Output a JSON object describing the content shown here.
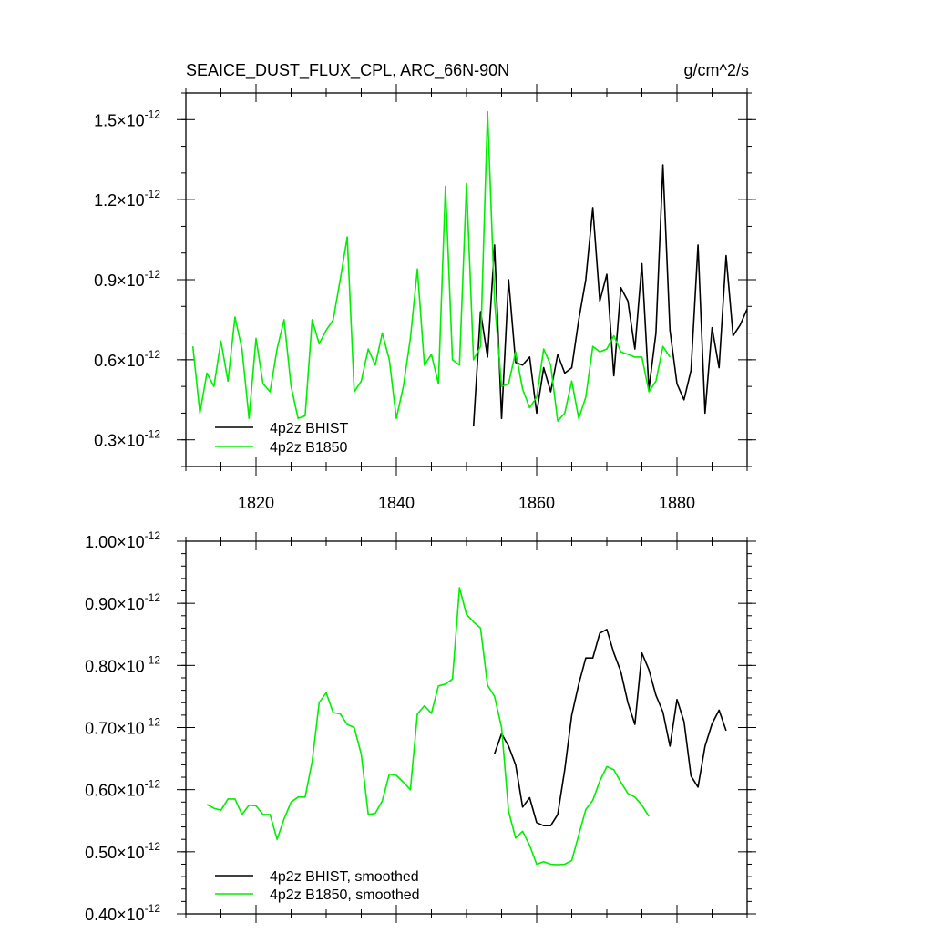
{
  "chart_data": [
    {
      "type": "line",
      "title": "SEAICE_DUST_FLUX_CPL, ARC_66N-90N",
      "units": "g/cm^2/s",
      "xlim": [
        1810,
        1890
      ],
      "ylim": [
        2e-13,
        1.6e-12
      ],
      "x_ticks": [
        1820,
        1840,
        1860,
        1880
      ],
      "y_ticks": [
        {
          "value": 3e-13,
          "mantissa": "0.3",
          "mult": "×10",
          "exp": "-12"
        },
        {
          "value": 6e-13,
          "mantissa": "0.6",
          "mult": "×10",
          "exp": "-12"
        },
        {
          "value": 9e-13,
          "mantissa": "0.9",
          "mult": "×10",
          "exp": "-12"
        },
        {
          "value": 1.2e-12,
          "mantissa": "1.2",
          "mult": "×10",
          "exp": "-12"
        },
        {
          "value": 1.5e-12,
          "mantissa": "1.5",
          "mult": "×10",
          "exp": "-12"
        }
      ],
      "legend_position": "bottom-left",
      "series": [
        {
          "name": "4p2z BHIST",
          "color": "#000000",
          "x_start": 1851,
          "values": [
            3.5e-13,
            7.8e-13,
            6.1e-13,
            1.03e-12,
            3.8e-13,
            9e-13,
            5.9e-13,
            5.8e-13,
            6.1e-13,
            4e-13,
            5.7e-13,
            4.8e-13,
            6.2e-13,
            5.5e-13,
            5.7e-13,
            7.5e-13,
            9e-13,
            1.17e-12,
            8.2e-13,
            9.2e-13,
            5.4e-13,
            8.7e-13,
            8.2e-13,
            6.4e-13,
            9.6e-13,
            4.9e-13,
            7e-13,
            1.33e-12,
            7.1e-13,
            5.1e-13,
            4.5e-13,
            5.6e-13,
            1.03e-12,
            4e-13,
            7.2e-13,
            5.7e-13,
            9.9e-13,
            6.9e-13,
            7.3e-13,
            7.9e-13
          ]
        },
        {
          "name": "4p2z B1850",
          "color": "#00ee00",
          "x_start": 1811,
          "values": [
            6.5e-13,
            4e-13,
            5.5e-13,
            5e-13,
            6.7e-13,
            5.2e-13,
            7.6e-13,
            6.4e-13,
            3.8e-13,
            6.8e-13,
            5.1e-13,
            4.8e-13,
            6.4e-13,
            7.5e-13,
            5e-13,
            3.8e-13,
            3.9e-13,
            7.5e-13,
            6.6e-13,
            7.1e-13,
            7.5e-13,
            9e-13,
            1.06e-12,
            4.8e-13,
            5.2e-13,
            6.4e-13,
            5.8e-13,
            7e-13,
            6e-13,
            3.8e-13,
            5e-13,
            6.8e-13,
            9.4e-13,
            5.8e-13,
            6.2e-13,
            5.1e-13,
            1.25e-12,
            6e-13,
            5.8e-13,
            1.26e-12,
            6e-13,
            6.5e-13,
            1.53e-12,
            8.2e-13,
            5e-13,
            5.1e-13,
            6.3e-13,
            4.9e-13,
            4.2e-13,
            4.6e-13,
            6.4e-13,
            5.8e-13,
            3.7e-13,
            4e-13,
            5.2e-13,
            3.8e-13,
            4.6e-13,
            6.5e-13,
            6.3e-13,
            6.4e-13,
            6.9e-13,
            6.3e-13,
            6.2e-13,
            6.1e-13,
            6.1e-13,
            4.8e-13,
            5.2e-13,
            6.5e-13,
            6.1e-13
          ]
        }
      ]
    },
    {
      "type": "line",
      "xlim": [
        1810,
        1890
      ],
      "ylim": [
        4e-13,
        1e-12
      ],
      "x_ticks": [
        1820,
        1840,
        1860,
        1880
      ],
      "y_ticks": [
        {
          "value": 4e-13,
          "mantissa": "0.40",
          "mult": "×10",
          "exp": "-12"
        },
        {
          "value": 5e-13,
          "mantissa": "0.50",
          "mult": "×10",
          "exp": "-12"
        },
        {
          "value": 6e-13,
          "mantissa": "0.60",
          "mult": "×10",
          "exp": "-12"
        },
        {
          "value": 7e-13,
          "mantissa": "0.70",
          "mult": "×10",
          "exp": "-12"
        },
        {
          "value": 8e-13,
          "mantissa": "0.80",
          "mult": "×10",
          "exp": "-12"
        },
        {
          "value": 9e-13,
          "mantissa": "0.90",
          "mult": "×10",
          "exp": "-12"
        },
        {
          "value": 1e-12,
          "mantissa": "1.00",
          "mult": "×10",
          "exp": "-12"
        }
      ],
      "legend_position": "bottom-left",
      "series": [
        {
          "name": "4p2z BHIST, smoothed",
          "color": "#000000",
          "x_start": 1854,
          "values": [
            6.58e-13,
            6.9e-13,
            6.7e-13,
            6.4e-13,
            5.72e-13,
            5.87e-13,
            5.47e-13,
            5.42e-13,
            5.42e-13,
            5.6e-13,
            6.32e-13,
            7.2e-13,
            7.7e-13,
            8.12e-13,
            8.12e-13,
            8.52e-13,
            8.58e-13,
            8.2e-13,
            7.9e-13,
            7.4e-13,
            7.05e-13,
            8.2e-13,
            7.93e-13,
            7.52e-13,
            7.25e-13,
            6.7e-13,
            7.45e-13,
            7.1e-13,
            6.22e-13,
            6.04e-13,
            6.7e-13,
            7.06e-13,
            7.28e-13,
            6.95e-13
          ]
        },
        {
          "name": "4p2z B1850, smoothed",
          "color": "#00ee00",
          "x_start": 1813,
          "values": [
            5.76e-13,
            5.7e-13,
            5.67e-13,
            5.85e-13,
            5.85e-13,
            5.6e-13,
            5.75e-13,
            5.74e-13,
            5.6e-13,
            5.6e-13,
            5.2e-13,
            5.53e-13,
            5.8e-13,
            5.88e-13,
            5.88e-13,
            6.45e-13,
            7.4e-13,
            7.56e-13,
            7.24e-13,
            7.22e-13,
            7.05e-13,
            7e-13,
            6.57e-13,
            5.6e-13,
            5.62e-13,
            5.82e-13,
            6.25e-13,
            6.23e-13,
            6.12e-13,
            6e-13,
            7.22e-13,
            7.35e-13,
            7.23e-13,
            7.67e-13,
            7.7e-13,
            7.78e-13,
            9.25e-13,
            8.82e-13,
            8.7e-13,
            8.6e-13,
            7.68e-13,
            7.5e-13,
            7e-13,
            5.65e-13,
            5.22e-13,
            5.33e-13,
            5.1e-13,
            4.8e-13,
            4.84e-13,
            4.8e-13,
            4.79e-13,
            4.8e-13,
            4.86e-13,
            5.27e-13,
            5.68e-13,
            5.83e-13,
            6.14e-13,
            6.37e-13,
            6.32e-13,
            6.12e-13,
            5.94e-13,
            5.88e-13,
            5.75e-13,
            5.57e-13
          ]
        }
      ]
    }
  ]
}
